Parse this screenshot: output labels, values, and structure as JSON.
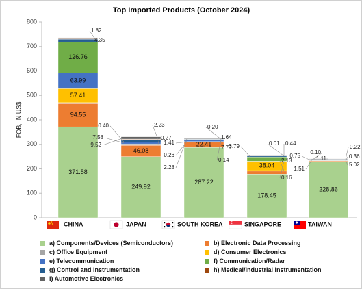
{
  "chart_data": {
    "type": "bar",
    "stacked": true,
    "title": "Top Imported Products (October 2024)",
    "ylabel": "FOB, IN US$",
    "ylim": [
      0,
      800
    ],
    "yticks": [
      0,
      100,
      200,
      300,
      400,
      500,
      600,
      700,
      800
    ],
    "categories": [
      "CHINA",
      "JAPAN",
      "SOUTH KOREA",
      "SINGAPORE",
      "TAIWAN"
    ],
    "series": [
      {
        "name": "a) Components/Devices (Semiconductors)",
        "color": "#a9d18e",
        "values": [
          371.58,
          249.92,
          287.22,
          178.45,
          228.86
        ]
      },
      {
        "name": "b) Electronic Data Processing",
        "color": "#ed7d31",
        "values": [
          94.55,
          46.08,
          22.41,
          12.19,
          2.51
        ]
      },
      {
        "name": "c) Office Equipment",
        "color": "#a5a5a5",
        "values": [
          4.09,
          5.46,
          1.41,
          2.13,
          0.36
        ]
      },
      {
        "name": "d) Consumer Electronics",
        "color": "#ffc000",
        "values": [
          57.41,
          0.27,
          0.26,
          38.04,
          1.51
        ]
      },
      {
        "name": "e) Telecommunication",
        "color": "#4472c4",
        "values": [
          63.99,
          7.58,
          7.77,
          0.16,
          0.75
        ]
      },
      {
        "name": "f) Communication/Radar",
        "color": "#70ad47",
        "values": [
          126.76,
          0.4,
          0.14,
          17.72,
          0.1
        ]
      },
      {
        "name": "g) Control and Instrumentation",
        "color": "#255e91",
        "values": [
          11.35,
          9.62,
          1.64,
          3.79,
          5.02
        ]
      },
      {
        "name": "h) Medical/Industrial Instrumentation",
        "color": "#9e480e",
        "values": [
          1.82,
          2.23,
          0.2,
          0.01,
          0.22
        ]
      },
      {
        "name": "i) Automotive Electronics",
        "color": "#636363",
        "values": [
          4.35,
          9.52,
          2.28,
          0.44,
          1.11
        ]
      }
    ],
    "grid": false,
    "legend_position": "bottom"
  },
  "flags": [
    {
      "country": "CHINA",
      "icon": "china-flag-icon"
    },
    {
      "country": "JAPAN",
      "icon": "japan-flag-icon"
    },
    {
      "country": "SOUTH KOREA",
      "icon": "south-korea-flag-icon"
    },
    {
      "country": "SINGAPORE",
      "icon": "singapore-flag-icon"
    },
    {
      "country": "TAIWAN",
      "icon": "taiwan-flag-icon"
    }
  ]
}
